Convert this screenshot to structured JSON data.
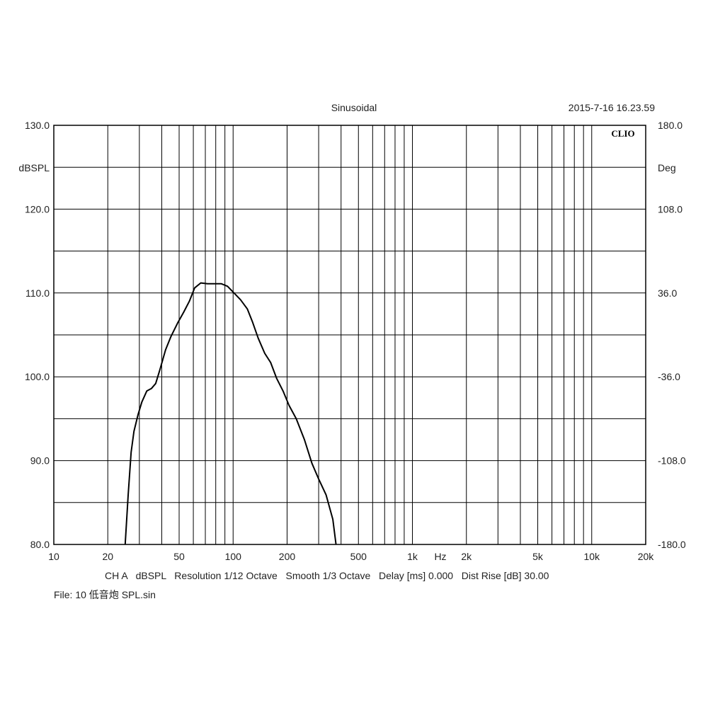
{
  "header": {
    "title": "Sinusoidal",
    "timestamp": "2015-7-16 16.23.59",
    "logo": "CLIO"
  },
  "footer": {
    "settings_line": "CH A   dBSPL   Resolution 1/12 Octave   Smooth 1/3 Octave   Delay [ms] 0.000   Dist Rise [dB] 30.00",
    "file_line": "File: 10 低音炮 SPL.sin"
  },
  "chart_data": {
    "type": "line",
    "x_scale": "log",
    "xlim": [
      10,
      20000
    ],
    "ylim": [
      80,
      130
    ],
    "y2lim": [
      -180,
      180
    ],
    "ylabel": "dBSPL",
    "y2label": "Deg",
    "xunit": "Hz",
    "grid": true,
    "x_ticks": [
      {
        "value": 10,
        "label": "10"
      },
      {
        "value": 20,
        "label": "20"
      },
      {
        "value": 50,
        "label": "50"
      },
      {
        "value": 100,
        "label": "100"
      },
      {
        "value": 200,
        "label": "200"
      },
      {
        "value": 500,
        "label": "500"
      },
      {
        "value": 1000,
        "label": "1k"
      },
      {
        "value": 2000,
        "label": "2k"
      },
      {
        "value": 5000,
        "label": "5k"
      },
      {
        "value": 10000,
        "label": "10k"
      },
      {
        "value": 20000,
        "label": "20k"
      }
    ],
    "y_ticks": [
      {
        "value": 130,
        "label": "130.0"
      },
      {
        "value": 120,
        "label": "120.0"
      },
      {
        "value": 110,
        "label": "110.0"
      },
      {
        "value": 100,
        "label": "100.0"
      },
      {
        "value": 90,
        "label": "90.0"
      },
      {
        "value": 80,
        "label": "80.0"
      }
    ],
    "y2_ticks": [
      {
        "value": 180,
        "label": "180.0"
      },
      {
        "value": 108,
        "label": "108.0"
      },
      {
        "value": 36,
        "label": "36.0"
      },
      {
        "value": -36,
        "label": "-36.0"
      },
      {
        "value": -108,
        "label": "-108.0"
      },
      {
        "value": -180,
        "label": "-180.0"
      }
    ],
    "series": [
      {
        "x": [
          25.0,
          26.0,
          27.0,
          28.0,
          29.5,
          31.0,
          33.0,
          35.0,
          37.0,
          39.0,
          42.0,
          45.0,
          49.0,
          53.0,
          57.0,
          61.0,
          66.0,
          72.0,
          79.0,
          86.0,
          93.0,
          100.0,
          110.0,
          120.0,
          128.0,
          138.0,
          150.0,
          162.0,
          175.0,
          190.0,
          205.0,
          225.0,
          250.0,
          275.0,
          300.0,
          330.0,
          360.0,
          375.0
        ],
        "y": [
          80.0,
          86.0,
          91.0,
          93.5,
          95.5,
          97.0,
          98.3,
          98.6,
          99.2,
          100.8,
          103.2,
          104.8,
          106.4,
          107.7,
          109.0,
          110.6,
          111.2,
          111.1,
          111.1,
          111.1,
          110.8,
          110.1,
          109.2,
          108.1,
          106.6,
          104.6,
          102.8,
          101.7,
          99.8,
          98.3,
          96.6,
          95.0,
          92.5,
          89.7,
          87.8,
          85.9,
          83.0,
          80.0
        ]
      }
    ]
  }
}
